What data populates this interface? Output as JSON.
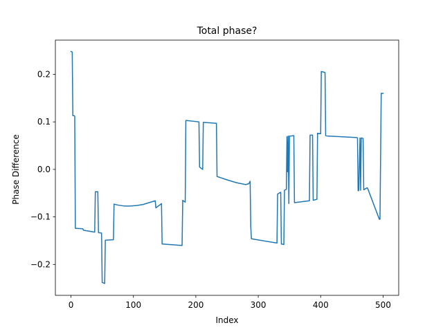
{
  "chart_data": {
    "type": "line",
    "title": "Total phase?",
    "xlabel": "Index",
    "ylabel": "Phase Difference",
    "xlim": [
      -25,
      525
    ],
    "ylim": [
      -0.265,
      0.272
    ],
    "xticks": [
      0,
      100,
      200,
      300,
      400,
      500
    ],
    "yticks": [
      -0.2,
      -0.1,
      0.0,
      0.1,
      0.2
    ],
    "ytick_labels": [
      "−0.2",
      "−0.1",
      "0.0",
      "0.1",
      "0.2"
    ],
    "grid": false,
    "line_color": "#1f77b4",
    "series": [
      {
        "x": [
          0,
          2,
          3,
          5,
          6,
          7,
          19,
          20,
          38,
          39,
          43,
          44,
          49,
          50,
          54,
          55,
          68,
          69,
          75,
          85,
          95,
          105,
          115,
          125,
          135,
          136,
          145,
          146,
          178,
          179,
          183,
          184,
          205,
          206,
          211,
          212,
          233,
          234,
          250,
          265,
          280,
          285,
          287,
          288,
          289,
          330,
          331,
          336,
          337,
          341,
          342,
          345,
          346,
          347,
          348,
          349,
          350,
          351,
          357,
          358,
          382,
          383,
          387,
          388,
          394,
          395,
          400,
          401,
          407,
          408,
          412,
          413,
          458,
          459,
          460,
          461,
          463,
          464,
          465,
          466,
          468,
          469,
          474,
          475,
          494,
          495,
          497,
          498,
          499,
          500
        ],
        "y": [
          0.248,
          0.247,
          0.113,
          0.113,
          0.112,
          -0.124,
          -0.125,
          -0.128,
          -0.132,
          -0.047,
          -0.047,
          -0.133,
          -0.134,
          -0.238,
          -0.24,
          -0.149,
          -0.148,
          -0.073,
          -0.075,
          -0.077,
          -0.077,
          -0.076,
          -0.074,
          -0.07,
          -0.066,
          -0.081,
          -0.072,
          -0.157,
          -0.16,
          -0.065,
          -0.069,
          0.103,
          0.1,
          0.005,
          0.0,
          0.099,
          0.097,
          -0.015,
          -0.022,
          -0.028,
          -0.032,
          -0.03,
          -0.025,
          -0.12,
          -0.146,
          -0.155,
          -0.052,
          -0.048,
          -0.157,
          -0.158,
          -0.044,
          -0.042,
          0.069,
          -0.005,
          0.07,
          -0.072,
          0.07,
          0.07,
          0.071,
          -0.07,
          -0.066,
          0.072,
          0.072,
          -0.065,
          -0.063,
          0.076,
          0.075,
          0.206,
          0.204,
          0.071,
          0.07,
          0.07,
          0.067,
          0.066,
          -0.045,
          -0.044,
          0.066,
          -0.044,
          0.066,
          0.066,
          0.065,
          -0.043,
          -0.039,
          -0.039,
          -0.105,
          -0.105,
          0.16,
          0.16,
          0.16,
          0.16
        ]
      }
    ]
  }
}
